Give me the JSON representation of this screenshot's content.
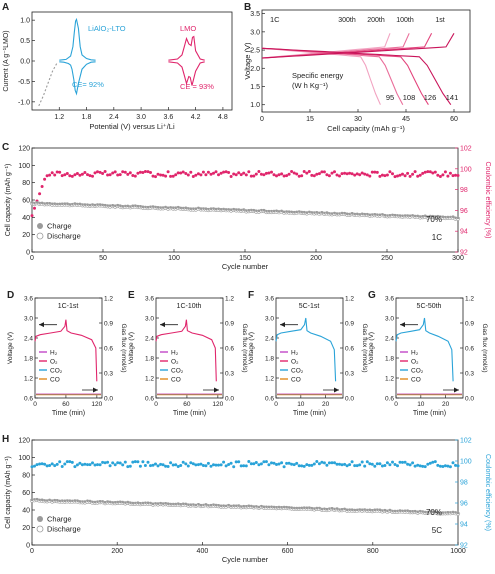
{
  "colors": {
    "blue": "#2aa3d8",
    "pink": "#e0266c",
    "gray": "#9a9a9a",
    "purple": "#c248c8",
    "orange": "#e08a1e",
    "axis": "#222222"
  },
  "chart_data": [
    {
      "panel": "A",
      "type": "line",
      "xlabel": "Potential (V) versus Li⁺/Li",
      "ylabel": "Current (A g⁻¹LMO)",
      "xlim": [
        0.6,
        5.0
      ],
      "ylim": [
        -1.2,
        1.2
      ],
      "xticks": [
        "1.2",
        "1.8",
        "2.4",
        "3.0",
        "3.6",
        "4.2",
        "4.8"
      ],
      "yticks": [
        "-1.0",
        "-0.5",
        "0.0",
        "0.5",
        "1.0"
      ],
      "annotations": [
        "LiAlO₂-LTO",
        "LMO",
        "CE= 92%",
        "CE = 93%"
      ],
      "series": [
        {
          "name": "LiAlO₂-LTO",
          "color": "blue",
          "x": [
            1.2,
            1.35,
            1.45,
            1.5,
            1.53,
            1.56,
            1.58,
            1.62,
            1.66,
            1.7,
            1.8,
            1.9,
            2.0
          ],
          "y": [
            0.02,
            0.04,
            0.12,
            0.35,
            0.7,
            0.98,
            1.02,
            0.8,
            0.35,
            0.15,
            0.06,
            0.03,
            0.02
          ]
        },
        {
          "name": "LiAlO₂-LTO",
          "color": "blue",
          "x": [
            2.0,
            1.9,
            1.8,
            1.7,
            1.62,
            1.58,
            1.55,
            1.52,
            1.48,
            1.45,
            1.4,
            1.3,
            1.2
          ],
          "y": [
            -0.02,
            -0.03,
            -0.08,
            -0.2,
            -0.55,
            -0.8,
            -0.72,
            -0.45,
            -0.2,
            -0.1,
            -0.06,
            -0.03,
            -0.02
          ]
        },
        {
          "name": "LMO",
          "color": "pink",
          "x": [
            3.6,
            3.8,
            3.9,
            3.95,
            4.0,
            4.05,
            4.1,
            4.13,
            4.16,
            4.2,
            4.3,
            4.4
          ],
          "y": [
            0.02,
            0.05,
            0.15,
            0.35,
            0.55,
            0.42,
            0.38,
            0.58,
            0.6,
            0.25,
            0.05,
            0.02
          ]
        },
        {
          "name": "LMO",
          "color": "pink",
          "x": [
            4.4,
            4.3,
            4.2,
            4.12,
            4.08,
            4.05,
            4.0,
            3.95,
            3.9,
            3.8,
            3.6
          ],
          "y": [
            -0.02,
            -0.05,
            -0.25,
            -0.6,
            -0.4,
            -0.38,
            -0.55,
            -0.35,
            -0.15,
            -0.05,
            -0.02
          ]
        },
        {
          "name": "",
          "color": "gray",
          "style": "dashed",
          "x": [
            0.75,
            0.85,
            0.95,
            1.05,
            1.15
          ],
          "y": [
            -1.1,
            -0.85,
            -0.55,
            -0.25,
            -0.05
          ]
        }
      ]
    },
    {
      "panel": "B",
      "type": "line",
      "xlabel": "Cell capacity (mAh g⁻¹)",
      "ylabel": "Voltage (V)",
      "xlim": [
        0,
        65
      ],
      "ylim": [
        0.8,
        3.6
      ],
      "xticks": [
        "0",
        "15",
        "30",
        "45",
        "60"
      ],
      "yticks": [
        "1.0",
        "1.5",
        "2.0",
        "2.5",
        "3.0",
        "3.5"
      ],
      "rate_label": "1C",
      "cycle_labels": [
        "300th",
        "200th",
        "100th",
        "1st"
      ],
      "energy_title": "Specific energy",
      "energy_unit": "(W h Kg⁻¹)",
      "energy_values": [
        "95",
        "108",
        "126",
        "141"
      ],
      "discharge_end_capacity": [
        37,
        44,
        52,
        59
      ],
      "charge_end_capacity": [
        40,
        46,
        53,
        60
      ]
    },
    {
      "panel": "C",
      "type": "scatter",
      "xlabel": "Cycle number",
      "ylabel": "Cell capacity (mAh g⁻¹)",
      "y2label": "Coulombic efficiency (%)",
      "xlim": [
        0,
        300
      ],
      "ylim": [
        0,
        120
      ],
      "y2lim": [
        92,
        102
      ],
      "xticks": [
        "0",
        "50",
        "100",
        "150",
        "200",
        "250",
        "300"
      ],
      "yticks": [
        "0",
        "20",
        "40",
        "60",
        "80",
        "100",
        "120"
      ],
      "y2ticks": [
        "92",
        "94",
        "96",
        "98",
        "100",
        "102"
      ],
      "legend": [
        "Charge",
        "Discharge"
      ],
      "retention_label": "70%",
      "rate_label": "1C",
      "capacity_start": 56,
      "capacity_end": 39,
      "ce_value": 99.5
    },
    {
      "panel": "D",
      "title": "1C-1st",
      "color": "pink",
      "type": "line",
      "xlabel": "Time (min)",
      "ylabel": "Voltage (V)",
      "y2label": "Gas flux (nmol/s)",
      "xlim": [
        0,
        130
      ],
      "ylim": [
        0.6,
        3.6
      ],
      "y2lim": [
        0,
        1.2
      ],
      "xticks": [
        "0",
        "60",
        "120"
      ],
      "yticks": [
        "0.6",
        "1.2",
        "1.8",
        "2.4",
        "3.0",
        "3.6"
      ],
      "y2ticks": [
        "0.0",
        "0.3",
        "0.6",
        "0.9",
        "1.2"
      ],
      "legend": [
        "H₂",
        "O₂",
        "CO₂",
        "CO"
      ],
      "t": [
        0,
        2,
        10,
        30,
        50,
        58,
        60,
        62,
        70,
        90,
        110,
        118,
        120
      ],
      "v": [
        2.3,
        2.45,
        2.5,
        2.55,
        2.6,
        2.75,
        2.95,
        2.62,
        2.55,
        2.48,
        2.35,
        2.1,
        1.1
      ]
    },
    {
      "panel": "E",
      "title": "1C-10th",
      "color": "pink",
      "type": "line",
      "xlabel": "Time (min)",
      "ylabel": "Voltage (V)",
      "y2label": "Gas flux (nmol/s)",
      "xlim": [
        0,
        130
      ],
      "ylim": [
        0.6,
        3.6
      ],
      "y2lim": [
        0,
        1.2
      ],
      "xticks": [
        "0",
        "60",
        "120"
      ],
      "yticks": [
        "0.6",
        "1.2",
        "1.8",
        "2.4",
        "3.0",
        "3.6"
      ],
      "y2ticks": [
        "0.0",
        "0.3",
        "0.6",
        "0.9",
        "1.2"
      ],
      "legend": [
        "H₂",
        "O₂",
        "CO₂",
        "CO"
      ],
      "t": [
        0,
        2,
        10,
        30,
        50,
        57,
        59,
        61,
        70,
        90,
        108,
        115,
        117
      ],
      "v": [
        2.3,
        2.45,
        2.5,
        2.55,
        2.6,
        2.75,
        2.95,
        2.62,
        2.55,
        2.48,
        2.35,
        2.1,
        1.1
      ]
    },
    {
      "panel": "F",
      "title": "5C-1st",
      "color": "blue",
      "type": "line",
      "xlabel": "Time (min)",
      "ylabel": "Voltage (V)",
      "y2label": "Gas flux (nmol/s)",
      "xlim": [
        0,
        27
      ],
      "ylim": [
        0.6,
        3.6
      ],
      "y2lim": [
        0,
        1.2
      ],
      "xticks": [
        "0",
        "10",
        "20"
      ],
      "yticks": [
        "0.6",
        "1.2",
        "1.8",
        "2.4",
        "3.0",
        "3.6"
      ],
      "y2ticks": [
        "0.0",
        "0.3",
        "0.6",
        "0.9",
        "1.2"
      ],
      "legend": [
        "H₂",
        "O₂",
        "CO₂",
        "CO"
      ],
      "t": [
        0,
        0.5,
        2,
        6,
        10,
        11.5,
        12,
        12.5,
        14,
        18,
        22,
        23.5,
        24
      ],
      "v": [
        2.3,
        2.5,
        2.55,
        2.6,
        2.65,
        2.8,
        3.0,
        2.62,
        2.55,
        2.45,
        2.3,
        2.05,
        1.1
      ]
    },
    {
      "panel": "G",
      "title": "5C-50th",
      "color": "blue",
      "type": "line",
      "xlabel": "Time (min)",
      "ylabel": "Voltage (V)",
      "y2label": "Gas flux (nmol/s)",
      "xlim": [
        0,
        27
      ],
      "ylim": [
        0.6,
        3.6
      ],
      "y2lim": [
        0,
        1.2
      ],
      "xticks": [
        "0",
        "10",
        "20"
      ],
      "yticks": [
        "0.6",
        "1.2",
        "1.8",
        "2.4",
        "3.0",
        "3.6"
      ],
      "y2ticks": [
        "0.0",
        "0.3",
        "0.6",
        "0.9",
        "1.2"
      ],
      "legend": [
        "H₂",
        "O₂",
        "CO₂",
        "CO"
      ],
      "t": [
        0,
        0.5,
        2,
        6,
        9.5,
        11,
        11.5,
        12,
        13.5,
        17,
        21,
        22.5,
        23
      ],
      "v": [
        2.3,
        2.5,
        2.55,
        2.6,
        2.65,
        2.8,
        3.0,
        2.62,
        2.55,
        2.45,
        2.3,
        2.05,
        1.1
      ]
    },
    {
      "panel": "H",
      "type": "scatter",
      "xlabel": "Cycle number",
      "ylabel": "Cell capacity (mAh g⁻¹)",
      "y2label": "Coulombic efficiency (%)",
      "xlim": [
        0,
        1000
      ],
      "ylim": [
        0,
        120
      ],
      "y2lim": [
        92,
        102
      ],
      "xticks": [
        "0",
        "200",
        "400",
        "600",
        "800",
        "1000"
      ],
      "yticks": [
        "0",
        "20",
        "40",
        "60",
        "80",
        "100",
        "120"
      ],
      "y2ticks": [
        "92",
        "94",
        "96",
        "98",
        "100",
        "102"
      ],
      "legend": [
        "Charge",
        "Discharge"
      ],
      "retention_label": "70%",
      "rate_label": "5C",
      "capacity_start": 51,
      "capacity_end": 36,
      "ce_value": 99.7
    }
  ]
}
